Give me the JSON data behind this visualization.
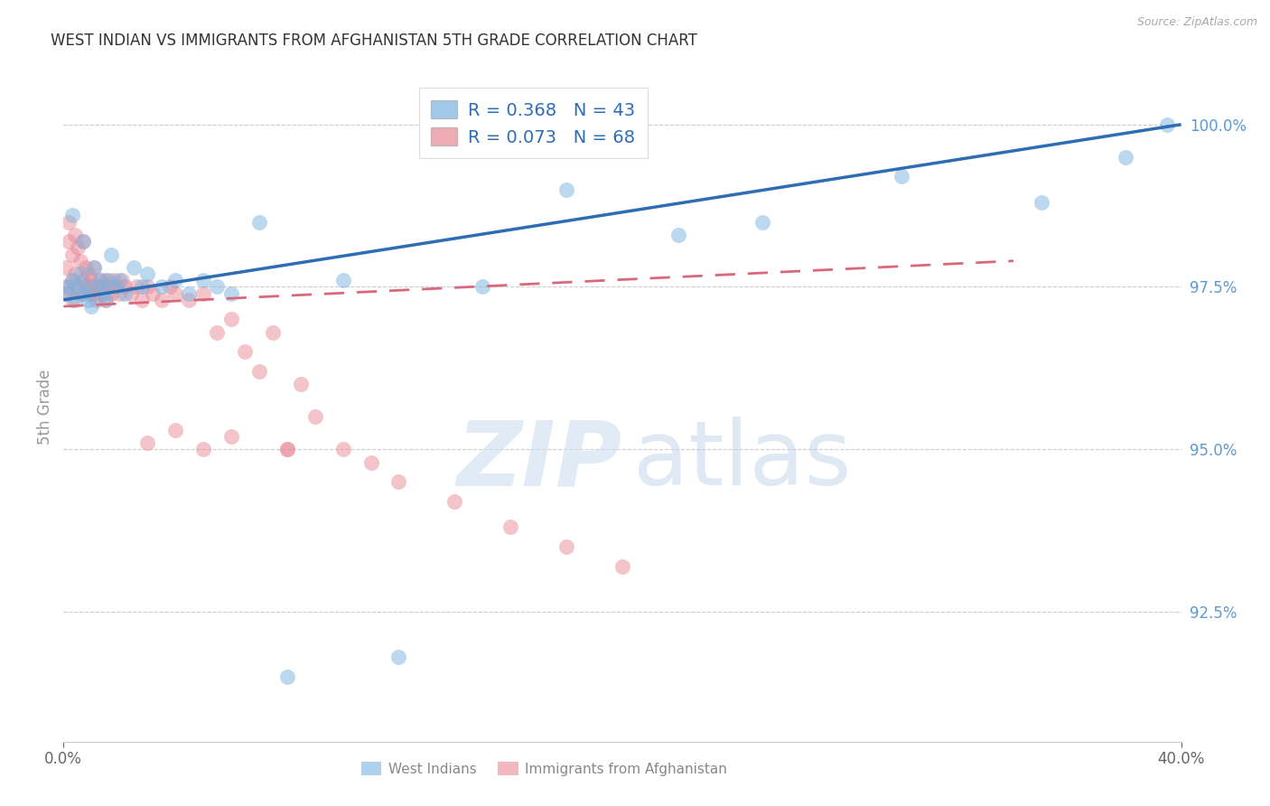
{
  "title": "WEST INDIAN VS IMMIGRANTS FROM AFGHANISTAN 5TH GRADE CORRELATION CHART",
  "source": "Source: ZipAtlas.com",
  "ylabel": "5th Grade",
  "background_color": "#ffffff",
  "grid_color": "#cccccc",
  "right_tick_color": "#5b9bd5",
  "legend_R1": "R = 0.368",
  "legend_N1": "N = 43",
  "legend_R2": "R = 0.073",
  "legend_N2": "N = 68",
  "blue_color": "#7ab3e0",
  "pink_color": "#e88a96",
  "blue_line_color": "#2e6db4",
  "pink_line_color": "#d9697a",
  "watermark_zip": "ZIP",
  "watermark_atlas": "atlas",
  "legend_blue_label": "West Indians",
  "legend_pink_label": "Immigrants from Afghanistan",
  "xlim": [
    0.0,
    0.4
  ],
  "ylim": [
    90.5,
    100.8
  ],
  "yticks": [
    92.5,
    95.0,
    97.5,
    100.0
  ],
  "blue_scatter_x": [
    0.001,
    0.002,
    0.003,
    0.003,
    0.004,
    0.005,
    0.006,
    0.007,
    0.007,
    0.008,
    0.009,
    0.01,
    0.011,
    0.012,
    0.013,
    0.014,
    0.015,
    0.016,
    0.017,
    0.018,
    0.02,
    0.022,
    0.025,
    0.028,
    0.03,
    0.035,
    0.04,
    0.045,
    0.05,
    0.055,
    0.06,
    0.07,
    0.08,
    0.1,
    0.12,
    0.15,
    0.18,
    0.22,
    0.25,
    0.3,
    0.35,
    0.38,
    0.395
  ],
  "blue_scatter_y": [
    97.4,
    97.5,
    97.6,
    98.6,
    97.3,
    97.5,
    97.7,
    97.4,
    98.2,
    97.5,
    97.3,
    97.2,
    97.8,
    97.5,
    97.6,
    97.4,
    97.3,
    97.6,
    98.0,
    97.5,
    97.6,
    97.4,
    97.8,
    97.5,
    97.7,
    97.5,
    97.6,
    97.4,
    97.6,
    97.5,
    97.4,
    98.5,
    91.5,
    97.6,
    91.8,
    97.5,
    99.0,
    98.3,
    98.5,
    99.2,
    98.8,
    99.5,
    100.0
  ],
  "pink_scatter_x": [
    0.001,
    0.001,
    0.002,
    0.002,
    0.002,
    0.003,
    0.003,
    0.003,
    0.004,
    0.004,
    0.005,
    0.005,
    0.006,
    0.006,
    0.007,
    0.007,
    0.008,
    0.008,
    0.009,
    0.009,
    0.01,
    0.01,
    0.011,
    0.011,
    0.012,
    0.012,
    0.013,
    0.013,
    0.014,
    0.015,
    0.015,
    0.016,
    0.017,
    0.018,
    0.019,
    0.02,
    0.021,
    0.022,
    0.024,
    0.026,
    0.028,
    0.03,
    0.032,
    0.035,
    0.038,
    0.04,
    0.045,
    0.05,
    0.055,
    0.06,
    0.065,
    0.07,
    0.075,
    0.08,
    0.085,
    0.09,
    0.1,
    0.11,
    0.12,
    0.14,
    0.16,
    0.18,
    0.2,
    0.05,
    0.08,
    0.06,
    0.04,
    0.03
  ],
  "pink_scatter_y": [
    97.5,
    97.8,
    97.4,
    98.2,
    98.5,
    97.6,
    98.0,
    97.3,
    97.7,
    98.3,
    97.5,
    98.1,
    97.4,
    97.9,
    97.6,
    98.2,
    97.5,
    97.8,
    97.4,
    97.7,
    97.5,
    97.6,
    97.4,
    97.8,
    97.5,
    97.3,
    97.6,
    97.4,
    97.5,
    97.6,
    97.3,
    97.5,
    97.4,
    97.6,
    97.5,
    97.4,
    97.6,
    97.5,
    97.4,
    97.5,
    97.3,
    97.5,
    97.4,
    97.3,
    97.5,
    97.4,
    97.3,
    97.4,
    96.8,
    97.0,
    96.5,
    96.2,
    96.8,
    95.0,
    96.0,
    95.5,
    95.0,
    94.8,
    94.5,
    94.2,
    93.8,
    93.5,
    93.2,
    95.0,
    95.0,
    95.2,
    95.3,
    95.1
  ],
  "blue_line_x": [
    0.0,
    0.4
  ],
  "blue_line_y": [
    97.3,
    100.0
  ],
  "pink_line_x": [
    0.0,
    0.34
  ],
  "pink_line_y": [
    97.2,
    97.9
  ]
}
